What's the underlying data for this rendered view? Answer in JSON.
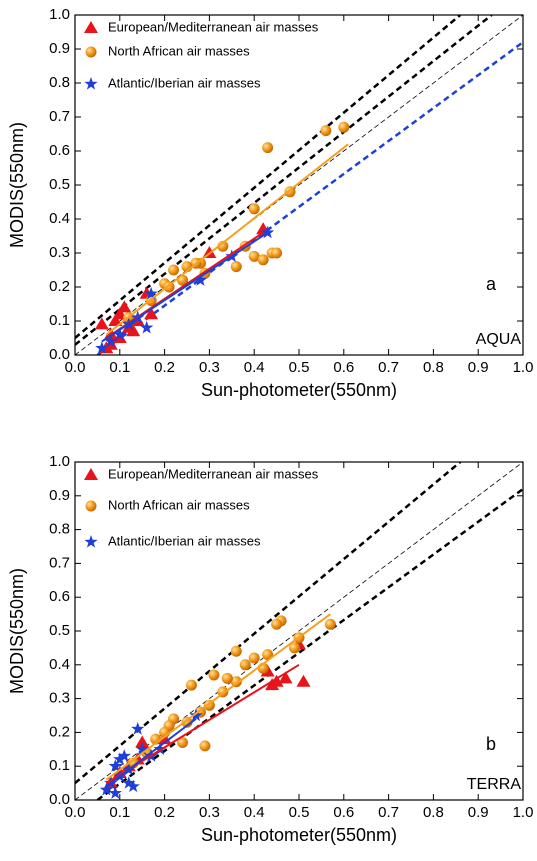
{
  "chart_data": [
    {
      "type": "scatter",
      "panel": "a",
      "instrument": "AQUA",
      "x_label": "Sun-photometer(550nm)",
      "y_label": "MODIS(550nm)",
      "xlim": [
        0,
        1
      ],
      "ylim": [
        0,
        1
      ],
      "xticks": [
        {
          "value": 0,
          "label": "0.0"
        },
        0.1,
        0.2,
        0.3,
        0.4,
        0.5,
        0.6,
        0.7,
        0.8,
        0.9,
        {
          "value": 1,
          "label": "1.0"
        }
      ],
      "yticks": [
        {
          "value": 0,
          "label": "0.0"
        },
        0.1,
        0.2,
        0.3,
        0.4,
        0.5,
        0.6,
        0.7,
        0.8,
        0.9,
        {
          "value": 1,
          "label": "1.0"
        }
      ],
      "series": [
        {
          "name": "European/Mediterranean air masses",
          "color": "#e8141b",
          "marker": "triangle",
          "x": [
            0.06,
            0.07,
            0.08,
            0.09,
            0.1,
            0.1,
            0.11,
            0.12,
            0.12,
            0.13,
            0.14,
            0.16,
            0.17,
            0.08,
            0.3,
            0.42
          ],
          "y": [
            0.09,
            0.02,
            0.06,
            0.1,
            0.05,
            0.12,
            0.14,
            0.08,
            0.11,
            0.07,
            0.1,
            0.18,
            0.12,
            0.03,
            0.3,
            0.37
          ],
          "fit": {
            "x": [
              0.07,
              0.42
            ],
            "y": [
              0.05,
              0.36
            ]
          }
        },
        {
          "name": "North African air masses",
          "color": "#f5a020",
          "marker": "circle",
          "x": [
            0.43,
            0.56,
            0.6,
            0.48,
            0.4,
            0.4,
            0.42,
            0.44,
            0.45,
            0.36,
            0.38,
            0.33,
            0.28,
            0.27,
            0.25,
            0.2,
            0.22,
            0.24,
            0.29,
            0.21,
            0.17,
            0.12
          ],
          "y": [
            0.61,
            0.66,
            0.67,
            0.48,
            0.43,
            0.29,
            0.28,
            0.3,
            0.3,
            0.26,
            0.32,
            0.32,
            0.27,
            0.27,
            0.26,
            0.21,
            0.25,
            0.22,
            0.24,
            0.2,
            0.16,
            0.11
          ],
          "fit": {
            "x": [
              0.07,
              0.61
            ],
            "y": [
              0.06,
              0.62
            ]
          }
        },
        {
          "name": "Atlantic/Iberian air masses",
          "color": "#1f3fd6",
          "marker": "star",
          "x": [
            0.43,
            0.35,
            0.28,
            0.17,
            0.16,
            0.1,
            0.12,
            0.14,
            0.08,
            0.06
          ],
          "y": [
            0.36,
            0.29,
            0.22,
            0.18,
            0.08,
            0.06,
            0.09,
            0.11,
            0.04,
            0.02
          ],
          "fit": {
            "x": [
              0.06,
              0.43
            ],
            "y": [
              0.04,
              0.36
            ]
          }
        }
      ],
      "reference_lines": [
        {
          "x": [
            0,
            0.86
          ],
          "y": [
            0.05,
            1
          ],
          "color": "#000",
          "style": "bold"
        },
        {
          "x": [
            0,
            0.93
          ],
          "y": [
            0.03,
            1
          ],
          "color": "#000",
          "style": "bold"
        },
        {
          "x": [
            0,
            1
          ],
          "y": [
            0,
            1
          ],
          "color": "#000",
          "style": "thin"
        },
        {
          "x": [
            0.05,
            1
          ],
          "y": [
            0,
            0.92
          ],
          "color": "#1f3fd6",
          "style": "bold"
        }
      ]
    },
    {
      "type": "scatter",
      "panel": "b",
      "instrument": "TERRA",
      "x_label": "Sun-photometer(550nm)",
      "y_label": "MODIS(550nm)",
      "xlim": [
        0,
        1
      ],
      "ylim": [
        0,
        1
      ],
      "xticks": [
        {
          "value": 0,
          "label": "0.0"
        },
        0.1,
        0.2,
        0.3,
        0.4,
        0.5,
        0.6,
        0.7,
        0.8,
        0.9,
        {
          "value": 1,
          "label": "1.0"
        }
      ],
      "yticks": [
        {
          "value": 0,
          "label": "0.0"
        },
        0.1,
        0.2,
        0.3,
        0.4,
        0.5,
        0.6,
        0.7,
        0.8,
        0.9,
        {
          "value": 1,
          "label": "1.0"
        }
      ],
      "series": [
        {
          "name": "European/Mediterranean air masses",
          "color": "#e8141b",
          "marker": "triangle",
          "x": [
            0.51,
            0.5,
            0.47,
            0.44,
            0.43,
            0.45,
            0.2,
            0.15,
            0.14,
            0.1,
            0.12,
            0.08
          ],
          "y": [
            0.35,
            0.46,
            0.36,
            0.34,
            0.38,
            0.35,
            0.18,
            0.17,
            0.12,
            0.08,
            0.1,
            0.05
          ],
          "fit": {
            "x": [
              0.07,
              0.5
            ],
            "y": [
              0.05,
              0.4
            ]
          }
        },
        {
          "name": "North African air masses",
          "color": "#f5a020",
          "marker": "circle",
          "x": [
            0.57,
            0.5,
            0.49,
            0.46,
            0.45,
            0.43,
            0.42,
            0.4,
            0.38,
            0.36,
            0.36,
            0.34,
            0.33,
            0.31,
            0.3,
            0.28,
            0.26,
            0.25,
            0.24,
            0.22,
            0.21,
            0.29,
            0.2,
            0.18,
            0.16,
            0.13
          ],
          "y": [
            0.52,
            0.48,
            0.45,
            0.53,
            0.52,
            0.43,
            0.39,
            0.42,
            0.4,
            0.44,
            0.35,
            0.36,
            0.32,
            0.37,
            0.28,
            0.26,
            0.34,
            0.23,
            0.17,
            0.24,
            0.22,
            0.16,
            0.2,
            0.18,
            0.14,
            0.11
          ],
          "fit": {
            "x": [
              0.07,
              0.57
            ],
            "y": [
              0.06,
              0.55
            ]
          }
        },
        {
          "name": "Atlantic/Iberian air masses",
          "color": "#1f3fd6",
          "marker": "star",
          "x": [
            0.07,
            0.08,
            0.09,
            0.1,
            0.11,
            0.12,
            0.13,
            0.14,
            0.15,
            0.17,
            0.19,
            0.27,
            0.1,
            0.12,
            0.09
          ],
          "y": [
            0.03,
            0.05,
            0.1,
            0.07,
            0.13,
            0.09,
            0.04,
            0.21,
            0.15,
            0.13,
            0.15,
            0.25,
            0.12,
            0.05,
            0.02
          ],
          "fit": {
            "x": [
              0.07,
              0.27
            ],
            "y": [
              0.04,
              0.24
            ]
          }
        }
      ],
      "reference_lines": [
        {
          "x": [
            0,
            0.86
          ],
          "y": [
            0.05,
            1
          ],
          "color": "#000",
          "style": "bold"
        },
        {
          "x": [
            0,
            1
          ],
          "y": [
            0,
            1
          ],
          "color": "#000",
          "style": "thin"
        },
        {
          "x": [
            0.05,
            1
          ],
          "y": [
            0,
            0.92
          ],
          "color": "#000",
          "style": "bold"
        }
      ]
    }
  ]
}
